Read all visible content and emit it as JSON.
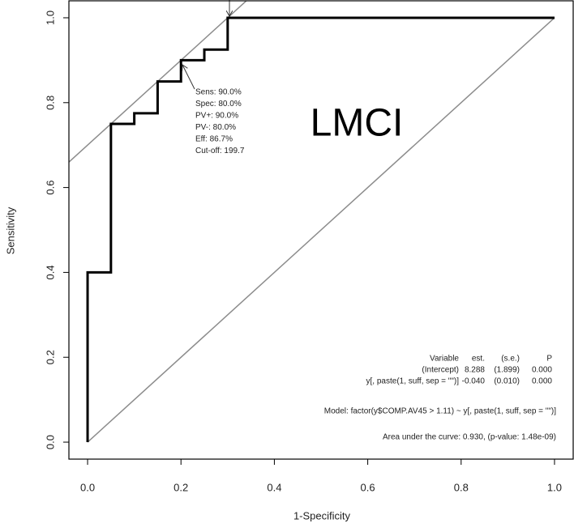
{
  "chart_data": {
    "type": "step",
    "x_label": "1-Specificity",
    "y_label": "Sensitivity",
    "x": [
      0,
      0,
      0.05,
      0.05,
      0.1,
      0.1,
      0.15,
      0.15,
      0.2,
      0.2,
      0.25,
      0.25,
      0.3,
      0.3,
      1.0
    ],
    "y": [
      0,
      0.4,
      0.4,
      0.75,
      0.75,
      0.775,
      0.775,
      0.85,
      0.85,
      0.9,
      0.9,
      0.925,
      0.925,
      1.0,
      1.0
    ],
    "color": "#000000",
    "reference_lines": [
      {
        "intercept": 0,
        "slope": 1
      },
      {
        "intercept": 0.7,
        "slope": 1
      }
    ],
    "reference_color": "#8c8c8c",
    "xlim": [
      -0.04,
      1.04
    ],
    "ylim": [
      -0.04,
      1.04
    ],
    "xticks": [
      {
        "value": 0,
        "label": "0.0"
      },
      0.2,
      0.4,
      0.6,
      0.8,
      {
        "value": 1,
        "label": "1.0"
      }
    ],
    "yticks": [
      {
        "value": 0,
        "label": "0.0"
      },
      0.2,
      0.4,
      0.6,
      0.8,
      {
        "value": 1,
        "label": "1.0"
      }
    ],
    "label": "LMCI",
    "cutoff_annotation": [
      "Sens: 90.0%",
      "Spec: 80.0%",
      "PV+: 90.0%",
      "PV-: 80.0%",
      "Eff: 86.7%",
      "Cut-off: 199.7"
    ],
    "coef_table": {
      "header": [
        "Variable",
        "est.",
        "(s.e.)",
        "P"
      ],
      "rows": [
        [
          "(Intercept)",
          "8.288",
          "(1.899)",
          "0.000"
        ],
        [
          "y[, paste(1, suff, sep = \"\")]",
          "-0.040",
          "(0.010)",
          "0.000"
        ]
      ]
    },
    "model": "Model:  factor(y$COMP.AV45 > 1.11) ~ y[, paste(1, suff, sep = \"\")]",
    "auc": "Area under the curve: 0.930, (p-value: 1.48e-09)"
  }
}
